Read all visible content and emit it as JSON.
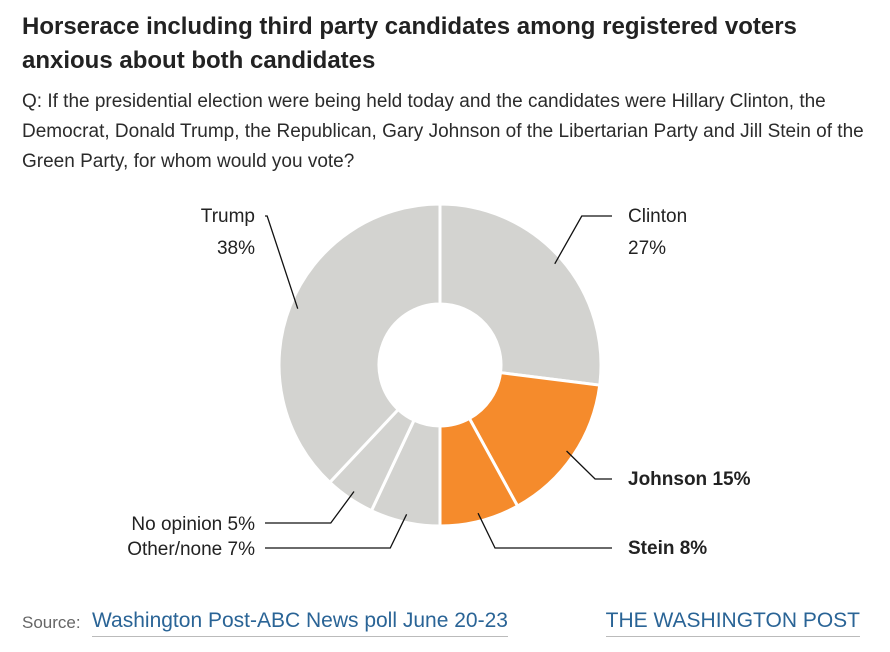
{
  "header": {
    "title": "Horserace including third party candidates among registered voters anxious about both candidates",
    "question": "Q: If the presidential election were being held today and the candidates were Hillary Clinton, the Democrat, Donald Trump, the Republican, Gary Johnson of the Libertarian Party and Jill Stein of the Green Party, for whom would you vote?"
  },
  "chart_data": {
    "type": "pie",
    "donut": true,
    "categories": [
      "Clinton",
      "Johnson",
      "Stein",
      "Other/none",
      "No opinion",
      "Trump"
    ],
    "values": [
      27,
      15,
      8,
      7,
      5,
      38
    ],
    "unit": "%",
    "colors": [
      "#d3d3d0",
      "#f58b2c",
      "#f58b2c",
      "#d3d3d0",
      "#d3d3d0",
      "#d3d3d0"
    ],
    "labels": [
      "Clinton 27%",
      "Johnson 15%",
      "Stein 8%",
      "Other/none 7%",
      "No opinion 5%",
      "Trump 38%"
    ],
    "highlighted": [
      "Johnson",
      "Stein"
    ]
  },
  "footer": {
    "source_label": "Source:",
    "source_link": "Washington Post-ABC News poll June 20-23",
    "brand": "THE WASHINGTON POST"
  },
  "colors": {
    "accent": "#f58b2c",
    "neutral": "#d3d3d0",
    "link": "#2a6496"
  }
}
